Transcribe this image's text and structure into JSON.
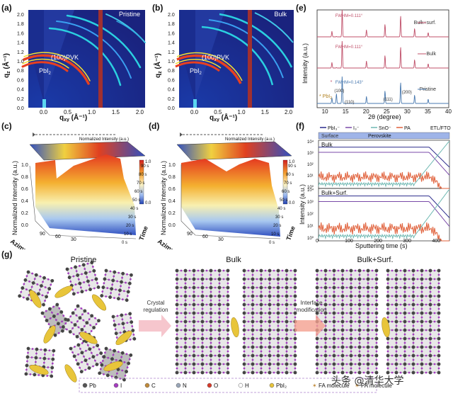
{
  "panel_labels": {
    "a": "(a)",
    "b": "(b)",
    "c": "(c)",
    "d": "(d)",
    "e": "(e)",
    "f": "(f)",
    "g": "(g)"
  },
  "panel_a": {
    "title": "Pristine",
    "xlabel": "q",
    "xlabel_sub": "xy",
    "xlabel_unit": " (Å⁻¹)",
    "ylabel": "q",
    "ylabel_sub": "z",
    "ylabel_unit": " (Å⁻¹)",
    "xticks": [
      "0.0",
      "0.5",
      "1.0",
      "1.5",
      "2.0"
    ],
    "yticks": [
      "0.0",
      "0.2",
      "0.4",
      "0.6",
      "0.8",
      "1.0",
      "1.2",
      "1.4",
      "1.6",
      "1.8",
      "2.0"
    ],
    "ann1": "(100)PVK",
    "ann2": "PbI",
    "ann2_sub": "2"
  },
  "panel_b": {
    "title": "Bulk",
    "xlabel": "q",
    "xlabel_sub": "xy",
    "xlabel_unit": " (Å⁻¹)",
    "ylabel": "q",
    "ylabel_sub": "z",
    "ylabel_unit": " (Å⁻¹)",
    "xticks": [
      "0.0",
      "0.5",
      "1.0",
      "1.5",
      "2.0"
    ],
    "yticks": [
      "0.0",
      "0.2",
      "0.4",
      "0.6",
      "0.8",
      "1.0",
      "1.2",
      "1.4",
      "1.6",
      "1.8",
      "2.0"
    ],
    "ann1": "(100)PVK",
    "ann2": "PbI",
    "ann2_sub": "2"
  },
  "panel_c": {
    "top_label": "Normalized Intensity (a.u.)",
    "zlabel": "Normalized Intensity (a.u.)",
    "xlabel": "Azimuth (°)",
    "tlabel": "Time",
    "zticks": [
      "0.0",
      "0.2",
      "0.4",
      "0.6",
      "0.8",
      "1.0"
    ],
    "cbar": [
      "1.0",
      "0.0"
    ],
    "aticks": [
      "90",
      "60",
      "30"
    ],
    "timeticks": [
      "0 s",
      "10 s",
      "20 s",
      "30 s",
      "40 s",
      "50 s",
      "60 s",
      "70 s",
      "80 s",
      "90 s"
    ]
  },
  "panel_d": {
    "top_label": "Normalized Intensity (a.u.)",
    "zlabel": "Normalized Intensity (a.u.)",
    "xlabel": "Azimuth (°)",
    "tlabel": "Time",
    "zticks": [
      "0.0",
      "0.2",
      "0.4",
      "0.6",
      "0.8",
      "1.0"
    ],
    "cbar": [
      "1.0",
      "0.0"
    ],
    "aticks": [
      "90",
      "60",
      "30"
    ],
    "timeticks": [
      "0 s",
      "10 s",
      "20 s",
      "30 s",
      "40 s",
      "50 s",
      "60 s",
      "70 s",
      "80 s",
      "90 s"
    ]
  },
  "panel_e": {
    "xlabel": "2θ (degree)",
    "ylabel": "Intensity (a.u.)",
    "xticks": [
      "10",
      "15",
      "20",
      "25",
      "30",
      "35",
      "40"
    ],
    "series": [
      {
        "name": "Bulk+surf.",
        "fwhm": "FWHM=0.111°",
        "color": "#c0506a"
      },
      {
        "name": "Bulk",
        "fwhm": "FWHM=0.111°",
        "color": "#c0506a"
      },
      {
        "name": "Pristine",
        "fwhm": "FWHM=0.143°",
        "color": "#4a7ab0"
      }
    ],
    "peaks": [
      "(100)",
      "(110)",
      "(111)",
      "(200)"
    ],
    "pbi2": "* PbI",
    "pbi2_sub": "2",
    "star": "*"
  },
  "panel_f": {
    "legend": [
      "PbI₃⁻",
      "I₃⁻",
      "SnO⁻",
      "PA"
    ],
    "legend_colors": [
      "#2b2b8c",
      "#7a4aa8",
      "#6fb8b2",
      "#e0603a"
    ],
    "etl": "ETL/FTO",
    "surface": "Surface",
    "perovskite": "Perovskite",
    "sub1": "Bulk",
    "sub2": "Bulk+Surf.",
    "xlabel": "Sputtering time (s)",
    "ylabel": "Intensity (a.u.)",
    "xticks": [
      "0",
      "100",
      "200",
      "300",
      "400"
    ],
    "yticks_top": [
      "10⁴",
      "10³",
      "10²",
      "10¹",
      "10⁰"
    ],
    "yticks_bot": [
      "10⁴",
      "10³",
      "10²",
      "10¹",
      "10⁰"
    ]
  },
  "panel_g": {
    "pristine": "Pristine",
    "bulk": "Bulk",
    "bulksurf": "Bulk+Surf.",
    "arrow1": [
      "Crystal",
      "regulation"
    ],
    "arrow2": [
      "Interface",
      "modification"
    ]
  },
  "legend_g": [
    {
      "sym": "Pb",
      "color": "#555555"
    },
    {
      "sym": "I",
      "color": "#a53cc0"
    },
    {
      "sym": "C",
      "color": "#c08a3a"
    },
    {
      "sym": "N",
      "color": "#9aa6b8"
    },
    {
      "sym": "O",
      "color": "#d83a2a"
    },
    {
      "sym": "H",
      "color": "#ffffff"
    },
    {
      "sym": "PbI₂",
      "color": "#e8c53a"
    },
    {
      "sym": "FA molecule",
      "color": ""
    },
    {
      "sym": "PA molecule",
      "color": ""
    }
  ],
  "watermark": "头条 @清华大学"
}
